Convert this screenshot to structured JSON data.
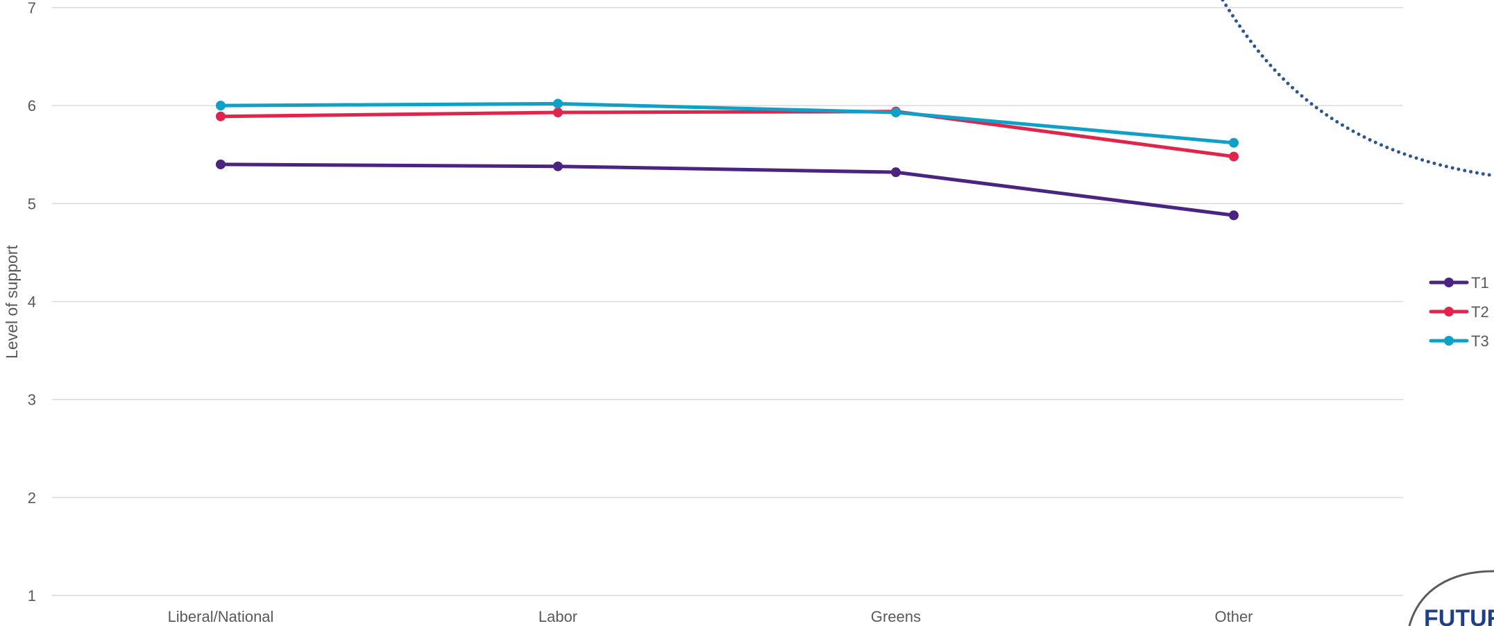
{
  "chart_data": {
    "type": "line",
    "title": "",
    "xlabel": "",
    "ylabel": "Level of support",
    "ylim": [
      1,
      7
    ],
    "yticks": [
      1,
      2,
      3,
      4,
      5,
      6,
      7
    ],
    "grid": true,
    "legend_position": "right",
    "categories": [
      "Liberal/National",
      "Labor",
      "Greens",
      "Other"
    ],
    "series": [
      {
        "name": "T1",
        "color": "#4B2380",
        "values": [
          5.4,
          5.38,
          5.32,
          4.88
        ]
      },
      {
        "name": "T2",
        "color": "#E0244A",
        "values": [
          5.89,
          5.93,
          5.94,
          5.48
        ]
      },
      {
        "name": "T3",
        "color": "#0EA1C8",
        "values": [
          6.0,
          6.02,
          5.93,
          5.62
        ]
      }
    ]
  },
  "decoration": {
    "arc_color": "#2E5590",
    "logo_text": "FUTUR",
    "logo_color": "#1F3F8A"
  }
}
